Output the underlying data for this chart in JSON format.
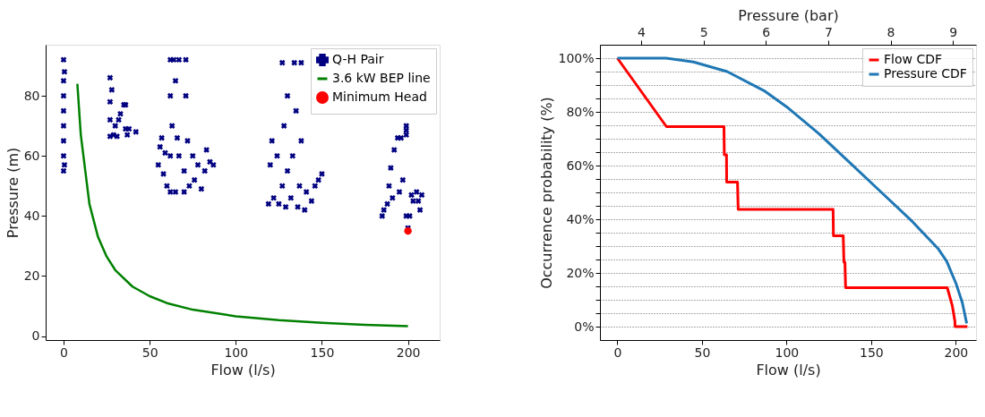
{
  "chart_data": [
    {
      "type": "scatter",
      "xlabel": "Flow (l/s)",
      "ylabel": "Pressure (m)",
      "xlim": [
        -10.4,
        218.4
      ],
      "ylim": [
        -1.3,
        97
      ],
      "xticks": [
        0,
        50,
        100,
        150,
        200
      ],
      "yticks": [
        0,
        20,
        40,
        60,
        80
      ],
      "legend": "top right",
      "grid": false,
      "series": [
        {
          "name": "Q-H Pair",
          "color": "#000080",
          "marker": "cross",
          "x": [
            0,
            0,
            0,
            0,
            0,
            0,
            0,
            0,
            0.5,
            0.5,
            27,
            27,
            27,
            27,
            28,
            29,
            30,
            31,
            32,
            33,
            35,
            36,
            37,
            36,
            38,
            42,
            55,
            56,
            57,
            58,
            59,
            60,
            62,
            62,
            62,
            62,
            63,
            64,
            65,
            65,
            66,
            67,
            67,
            70,
            70,
            71,
            71,
            72,
            73,
            75,
            76,
            78,
            80,
            82,
            83,
            85,
            87,
            119,
            120,
            121,
            122,
            124,
            125,
            127,
            127,
            128,
            129,
            130,
            130,
            132,
            133,
            134,
            135,
            136,
            137,
            138,
            138,
            140,
            141,
            144,
            146,
            148,
            150,
            185,
            186,
            188,
            189,
            190,
            191,
            192,
            194,
            195,
            196,
            197,
            199,
            199,
            199,
            199,
            200,
            201,
            203,
            205,
            206,
            208,
            207,
            202
          ],
          "values": [
            55,
            60,
            65,
            70,
            75,
            80,
            85,
            92,
            57,
            88,
            66.5,
            72,
            78,
            86,
            82,
            67,
            70,
            66.5,
            72,
            74,
            77,
            69,
            67,
            77,
            69,
            68,
            57,
            63,
            66,
            54,
            61,
            50,
            48,
            60,
            92,
            80,
            70,
            92,
            48,
            85,
            66,
            60,
            92,
            55,
            48,
            92,
            80,
            65,
            50,
            60,
            52,
            57,
            49,
            55,
            62,
            58,
            57,
            44,
            57,
            65,
            46,
            60,
            44,
            50,
            91,
            70,
            43,
            55,
            80,
            46,
            60,
            91,
            75,
            43,
            50,
            65,
            91,
            42,
            48,
            45,
            50,
            52,
            54,
            40,
            42,
            44,
            50,
            56,
            46,
            62,
            66,
            48,
            66,
            52,
            67,
            70,
            68.5,
            40,
            36,
            40,
            45,
            48,
            45,
            47,
            42,
            47
          ]
        },
        {
          "name": "3.6 kW BEP line",
          "color": "#008000",
          "type": "line",
          "marker": "none",
          "line_style": "solid",
          "x": [
            8,
            10,
            15,
            20,
            25,
            30,
            40,
            50,
            60,
            75,
            100,
            125,
            150,
            175,
            200
          ],
          "values": [
            84,
            67,
            44,
            33,
            26.5,
            22,
            16.5,
            13.3,
            11,
            8.8,
            6.6,
            5.3,
            4.4,
            3.8,
            3.3
          ]
        },
        {
          "name": "Minimum Head",
          "color": "#ff0000",
          "marker": "circle",
          "x": [
            200
          ],
          "values": [
            35
          ]
        }
      ]
    },
    {
      "type": "line",
      "xlabel": "Flow (l/s)",
      "x2label": "Pressure (bar)",
      "ylabel": "Occurrence probability (%)",
      "xlim": [
        -10.3,
        212
      ],
      "x2lim": [
        3.34,
        9.37
      ],
      "ylim": [
        -5,
        105
      ],
      "xticks": [
        0,
        50,
        100,
        150,
        200
      ],
      "x2ticks": [
        4,
        5,
        6,
        7,
        8,
        9
      ],
      "yticks": [
        {
          "value": 0,
          "label": "0%"
        },
        {
          "value": 5,
          "label": null
        },
        {
          "value": 10,
          "label": null
        },
        {
          "value": 15,
          "label": null
        },
        {
          "value": 20,
          "label": "20%"
        },
        {
          "value": 25,
          "label": null
        },
        {
          "value": 30,
          "label": null
        },
        {
          "value": 35,
          "label": null
        },
        {
          "value": 40,
          "label": "40%"
        },
        {
          "value": 45,
          "label": null
        },
        {
          "value": 50,
          "label": null
        },
        {
          "value": 55,
          "label": null
        },
        {
          "value": 60,
          "label": "60%"
        },
        {
          "value": 65,
          "label": null
        },
        {
          "value": 70,
          "label": null
        },
        {
          "value": 75,
          "label": null
        },
        {
          "value": 80,
          "label": "80%"
        },
        {
          "value": 85,
          "label": null
        },
        {
          "value": 90,
          "label": null
        },
        {
          "value": 95,
          "label": null
        },
        {
          "value": 100,
          "label": "100%"
        }
      ],
      "grid": "y",
      "legend": "top right",
      "line_style": "solid",
      "marker": "none",
      "series": [
        {
          "name": "Flow CDF",
          "color": "#ff0000",
          "x": [
            0,
            29,
            63,
            63.2,
            64,
            64.5,
            64.6,
            71,
            71.4,
            127.5,
            127.7,
            133.5,
            133.9,
            134.5,
            134.9,
            195,
            198,
            199.5,
            199.6,
            206.9
          ],
          "values": [
            100,
            74.5,
            74.5,
            64,
            64,
            64,
            53.8,
            53.8,
            43.7,
            43.7,
            33.8,
            33.8,
            24,
            24,
            14.5,
            14.5,
            7.7,
            2,
            0,
            0
          ]
        },
        {
          "name": "Pressure CDF",
          "color": "#1f77b4",
          "axis": "x2",
          "x": [
            3.62,
            4.4,
            4.84,
            5.38,
            5.97,
            6.36,
            6.85,
            7.34,
            7.83,
            8.32,
            8.76,
            8.9,
            9.05,
            9.15,
            9.22
          ],
          "values": [
            100,
            100,
            98.6,
            95,
            87.9,
            81.4,
            71.9,
            61.2,
            50.5,
            39.8,
            29.1,
            24.3,
            16,
            8.9,
            1.2
          ]
        }
      ]
    }
  ]
}
